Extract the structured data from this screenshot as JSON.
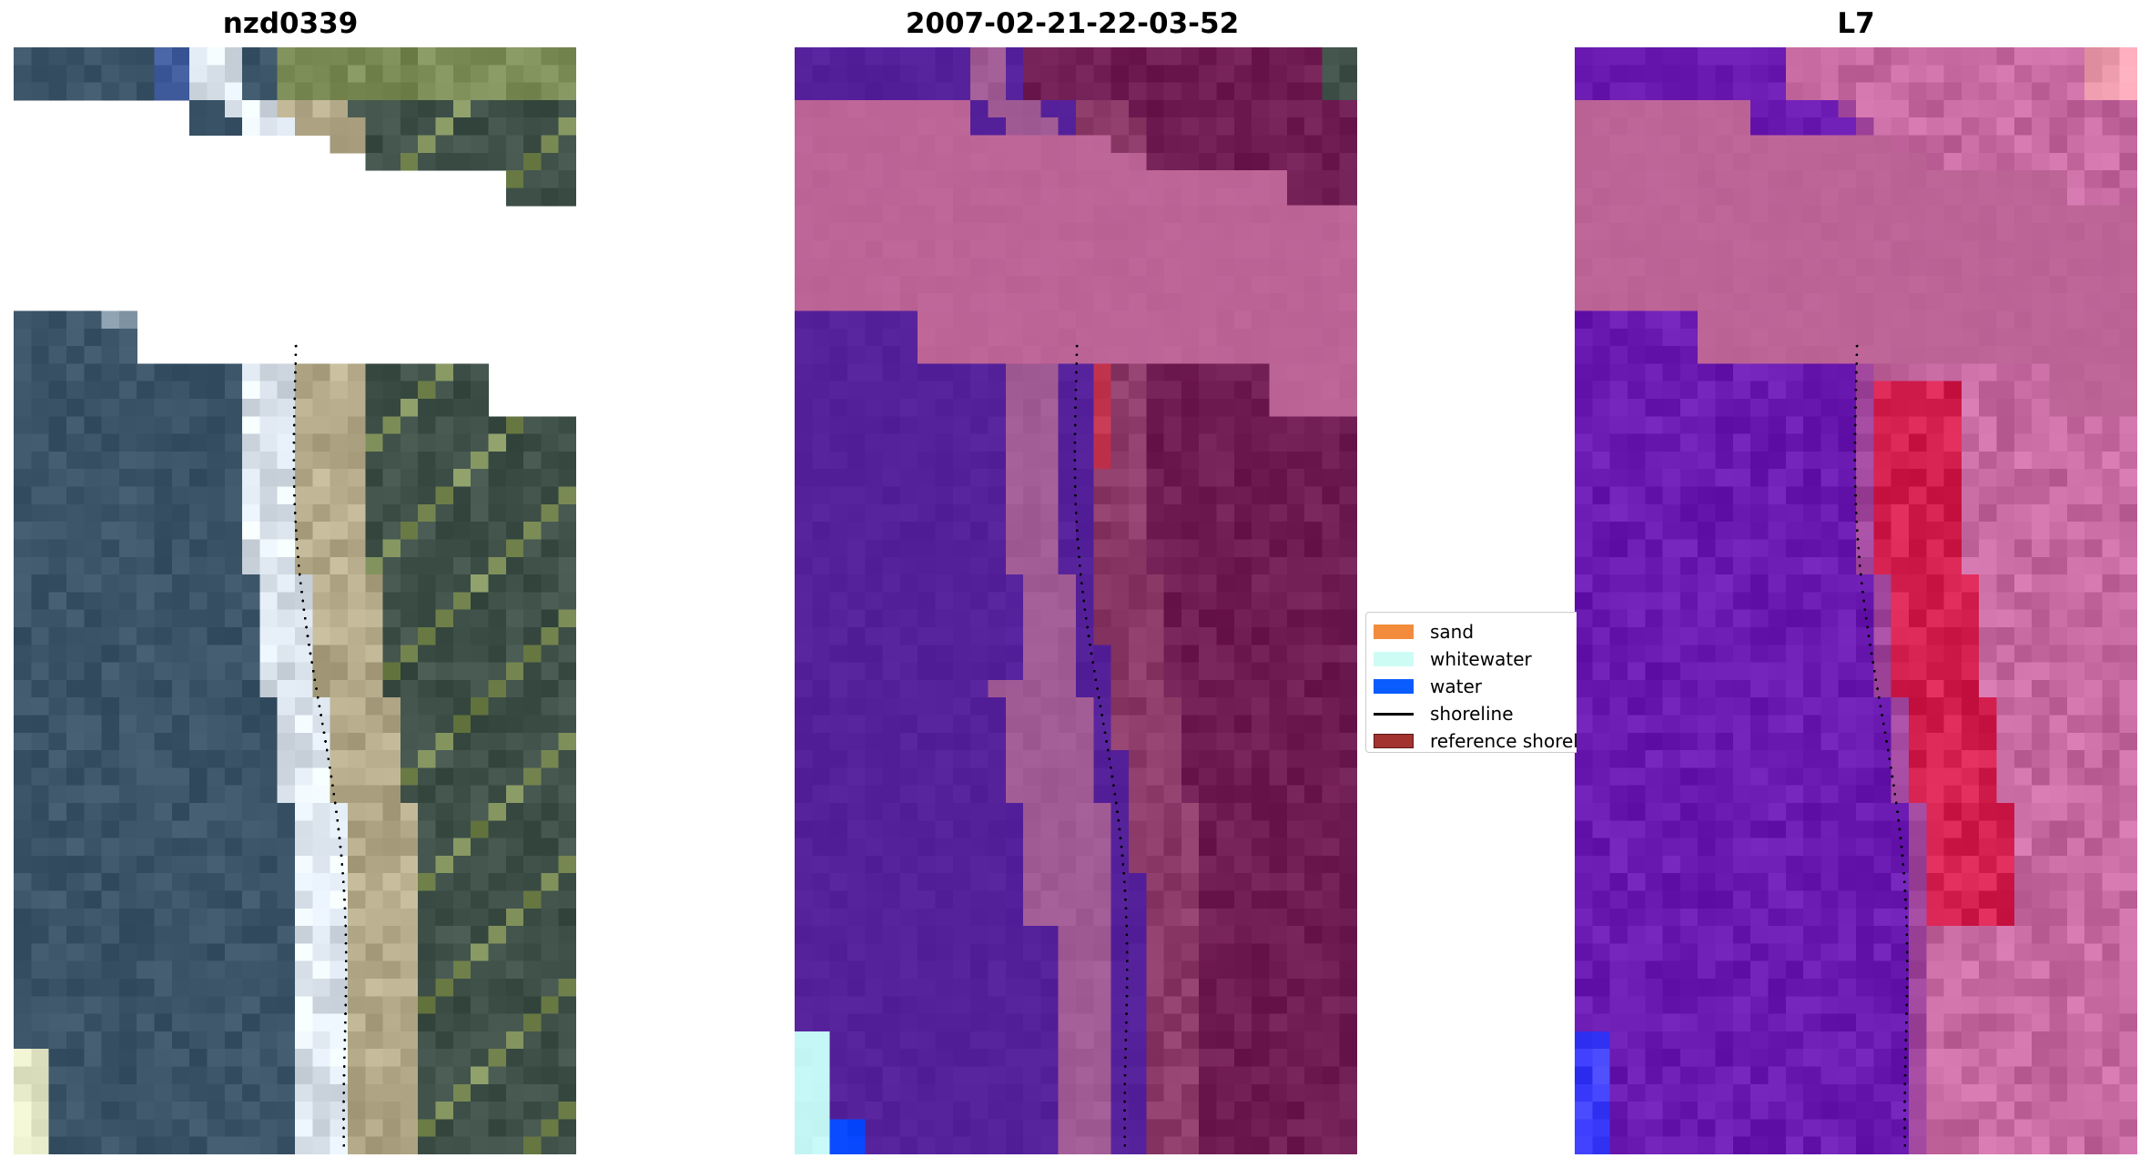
{
  "panels": [
    {
      "title": "nzd0339"
    },
    {
      "title": "2007-02-21-22-03-52"
    },
    {
      "title": "L7"
    }
  ],
  "legend": {
    "items": [
      {
        "label": "sand",
        "color": "#f28c3c",
        "kind": "patch"
      },
      {
        "label": "whitewater",
        "color": "#cdfcf5",
        "kind": "patch"
      },
      {
        "label": "water",
        "color": "#0a5cff",
        "kind": "patch"
      },
      {
        "label": "shoreline",
        "color": "#000000",
        "kind": "line"
      },
      {
        "label": "reference shoreline buffer",
        "color": "#a2332e",
        "kind": "patch"
      }
    ]
  },
  "colors": {
    "nodata": "#ffffff",
    "rgb_sea": "#3b5468",
    "rgb_land": "#3e5048",
    "rgb_vegetation": "#7a8a55",
    "rgb_sand": "#b5ab8a",
    "rgb_white": "#dde5ee",
    "class_cloud": "#bd6497",
    "class_water": "#55219a",
    "class_sand": "#a25c95",
    "class_land": "#6f1c52",
    "class_buffer": "#c2344e",
    "class_whitewater": "#c4f6f5",
    "class_deepwater": "#0a4aff",
    "nir_cloud": "#bd6497",
    "nir_water": "#6a1ab0",
    "nir_land": "#c86aa2",
    "nir_hot": "#d4204f",
    "nir_blue": "#3d3dff"
  }
}
